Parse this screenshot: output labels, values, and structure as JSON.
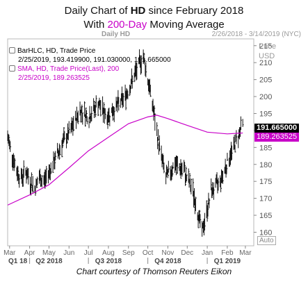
{
  "header": {
    "line1_pre": "Daily Chart of ",
    "line1_bold": "HD",
    "line1_post": " since February 2018",
    "line2_pre": "With ",
    "line2_accent": "200-Day",
    "line2_post": " Moving Average"
  },
  "meta": {
    "left": "Daily HD",
    "right": "2/26/2018 - 3/14/2019 (NYC)"
  },
  "legend": {
    "bar_title": "BarHLC, HD, Trade Price",
    "bar_values": "2/25/2019, 193.419900, 191.030000, 191.665000",
    "sma_title": "SMA, HD, Trade Price(Last), 200",
    "sma_values": "2/25/2019, 189.263525"
  },
  "price_tags": {
    "last": "191.665000",
    "sma": "189.263525"
  },
  "auto_label": "Auto",
  "caption": "Chart courtesy of Thomson Reuters Eikon",
  "colors": {
    "bars": "#111111",
    "sma": "#c800c8",
    "last_tag": "#000000",
    "sma_tag": "#c800c8",
    "grid": "#b8b8b8"
  },
  "chart_data": {
    "type": "line",
    "title": "Daily Chart of HD since February 2018 With 200-Day Moving Average",
    "ylabel": "USD",
    "ylim": [
      156,
      217
    ],
    "yticks": [
      160,
      165,
      170,
      175,
      180,
      185,
      190,
      195,
      200,
      205,
      210,
      215
    ],
    "y_unit_label": "Price USD",
    "x_months": [
      "Mar",
      "Apr",
      "May",
      "Jun",
      "Jul",
      "Aug",
      "Sep",
      "Oct",
      "Nov",
      "Dec",
      "Jan",
      "Feb",
      "Mar"
    ],
    "x_quarters": [
      "Q1 18",
      "Q2 2018",
      "Q3 2018",
      "Q4 2018",
      "Q1 2019"
    ],
    "grid": true,
    "series": [
      {
        "name": "BarHLC, HD, Trade Price",
        "style": "hlc-bars",
        "close_path": [
          [
            "2018-02-26",
            188
          ],
          [
            "2018-03-05",
            183
          ],
          [
            "2018-03-12",
            178
          ],
          [
            "2018-03-19",
            176
          ],
          [
            "2018-03-26",
            178
          ],
          [
            "2018-04-02",
            175
          ],
          [
            "2018-04-09",
            173
          ],
          [
            "2018-04-16",
            176
          ],
          [
            "2018-04-23",
            175
          ],
          [
            "2018-05-07",
            180
          ],
          [
            "2018-05-21",
            186
          ],
          [
            "2018-06-04",
            190
          ],
          [
            "2018-06-18",
            196
          ],
          [
            "2018-07-02",
            194
          ],
          [
            "2018-07-16",
            198
          ],
          [
            "2018-07-30",
            194
          ],
          [
            "2018-08-13",
            197
          ],
          [
            "2018-08-27",
            200
          ],
          [
            "2018-09-10",
            206
          ],
          [
            "2018-09-17",
            209
          ],
          [
            "2018-09-24",
            212
          ],
          [
            "2018-10-01",
            205
          ],
          [
            "2018-10-08",
            198
          ],
          [
            "2018-10-15",
            189
          ],
          [
            "2018-10-29",
            176
          ],
          [
            "2018-11-12",
            180
          ],
          [
            "2018-11-26",
            178
          ],
          [
            "2018-12-10",
            172
          ],
          [
            "2018-12-17",
            166
          ],
          [
            "2018-12-24",
            160
          ],
          [
            "2019-01-07",
            172
          ],
          [
            "2019-01-21",
            175
          ],
          [
            "2019-02-04",
            182
          ],
          [
            "2019-02-15",
            187
          ],
          [
            "2019-02-25",
            192
          ]
        ]
      },
      {
        "name": "SMA, HD, Trade Price(Last), 200",
        "style": "line",
        "points": [
          [
            "2018-02-26",
            168
          ],
          [
            "2018-04-01",
            171
          ],
          [
            "2018-05-01",
            174
          ],
          [
            "2018-06-01",
            179
          ],
          [
            "2018-07-01",
            184
          ],
          [
            "2018-08-01",
            188
          ],
          [
            "2018-09-01",
            192
          ],
          [
            "2018-10-01",
            194
          ],
          [
            "2018-10-15",
            194.5
          ],
          [
            "2018-11-01",
            193.5
          ],
          [
            "2018-12-01",
            191.5
          ],
          [
            "2019-01-01",
            189.5
          ],
          [
            "2019-02-01",
            189
          ],
          [
            "2019-02-25",
            189.26
          ]
        ]
      }
    ]
  }
}
